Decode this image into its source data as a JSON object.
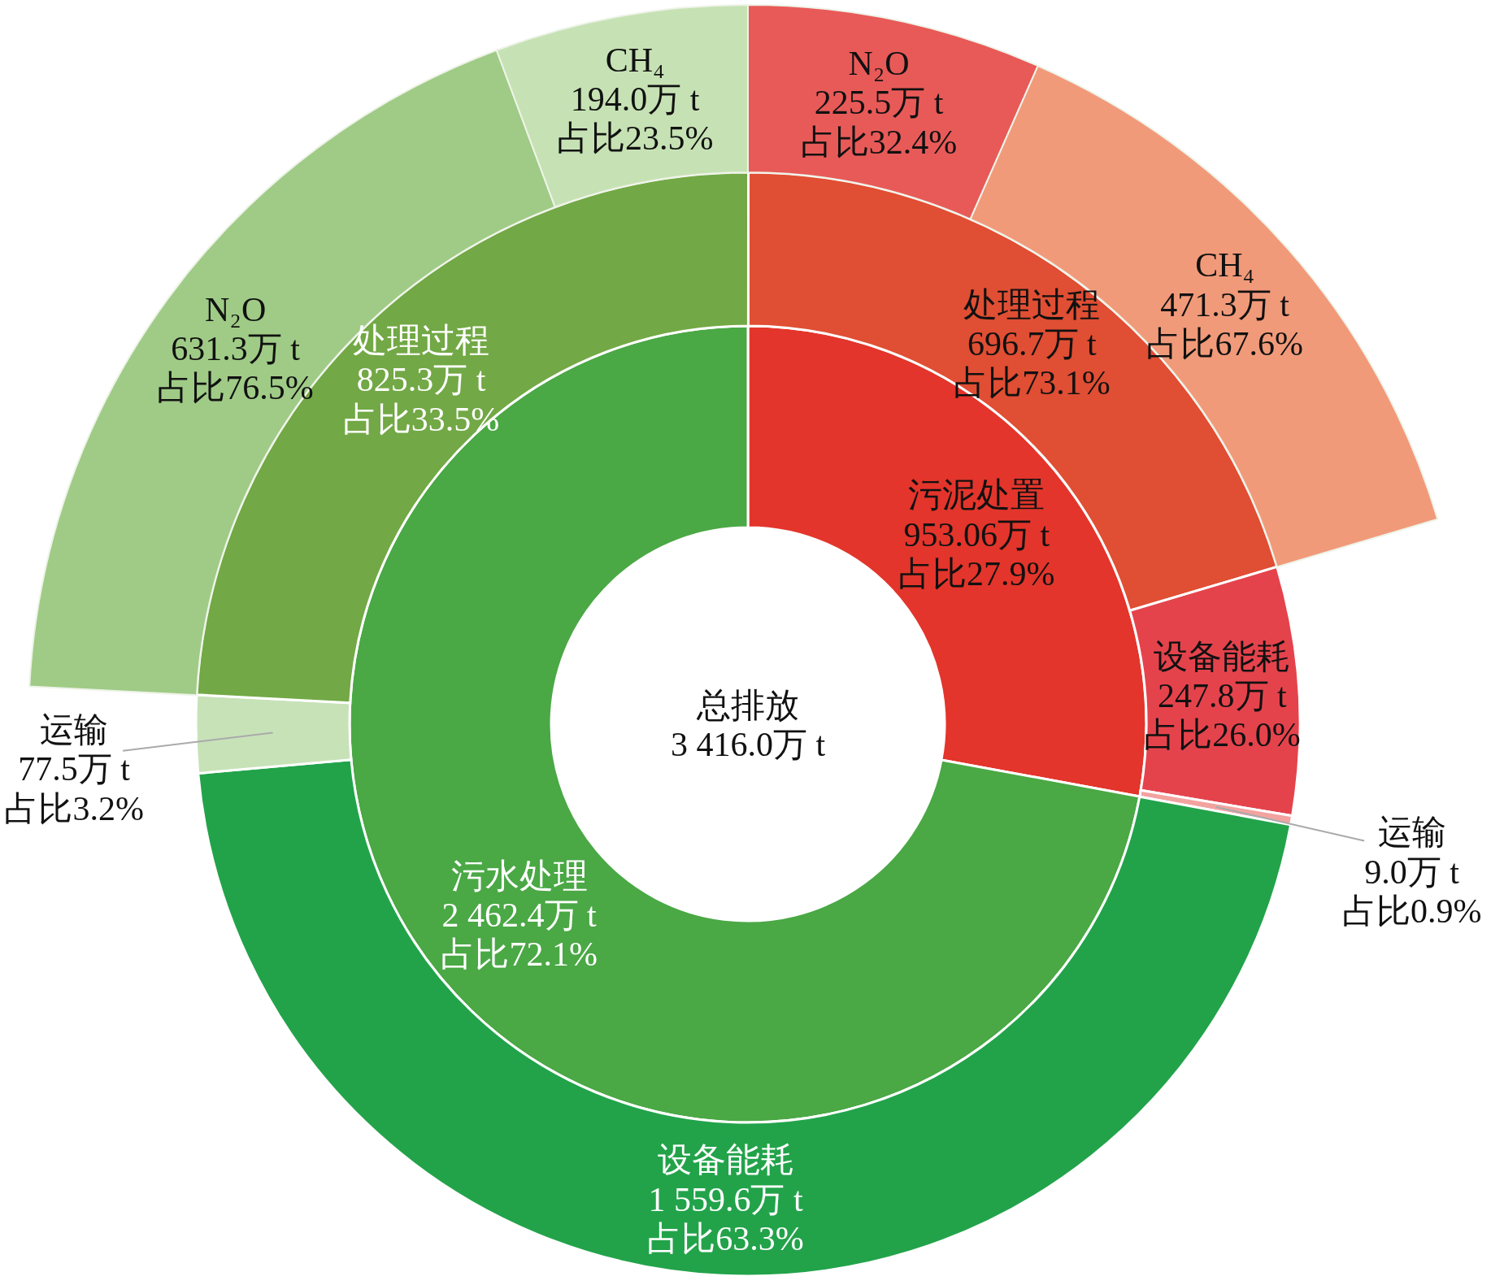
{
  "chart_data": [
    {
      "type": "donut",
      "title": "总排放",
      "subtitle": "3 416.0万 t",
      "categories": [
        "污泥处置",
        "污水处理"
      ],
      "values": [
        953.06,
        2462.4
      ],
      "colors": [
        "#e3352b",
        "#4aa845"
      ],
      "value_labels": [
        "953.06万 t\n占比27.9%",
        "2 462.4万 t\n占比72.1%"
      ]
    },
    {
      "type": "donut",
      "categories": [
        "处理过程",
        "设备能耗",
        "运输",
        "设备能耗",
        "运输",
        "处理过程"
      ],
      "values": [
        696.7,
        247.8,
        9.0,
        1559.6,
        77.5,
        825.3
      ],
      "colors": [
        "#e04e33",
        "#e5434c",
        "#f2a3a0",
        "#22a34a",
        "#c8e2b8",
        "#72a845"
      ],
      "value_labels": [
        "696.7万 t\n占比73.1%",
        "247.8万 t\n占比26.0%",
        "9.0万 t\n占比0.9%",
        "1 559.6万 t\n占比63.3%",
        "77.5万 t\n占比3.2%",
        "825.3万 t\n占比33.5%"
      ]
    },
    {
      "type": "other",
      "categories": [
        "N₂O",
        "CH₄",
        null,
        "N₂O",
        "CH₄"
      ],
      "values": [
        225.5,
        471.3,
        null,
        631.3,
        194.0
      ],
      "colors": [
        "#e85a58",
        "#f19a7a",
        null,
        "#9fcb86",
        "#c6e2b4"
      ],
      "value_labels": [
        "225.5万 t\n占比32.4%",
        "471.3万 t\n占比67.6%",
        null,
        "631.3万 t\n占比76.5%",
        "194.0万 t\n占比23.5%"
      ]
    }
  ]
}
